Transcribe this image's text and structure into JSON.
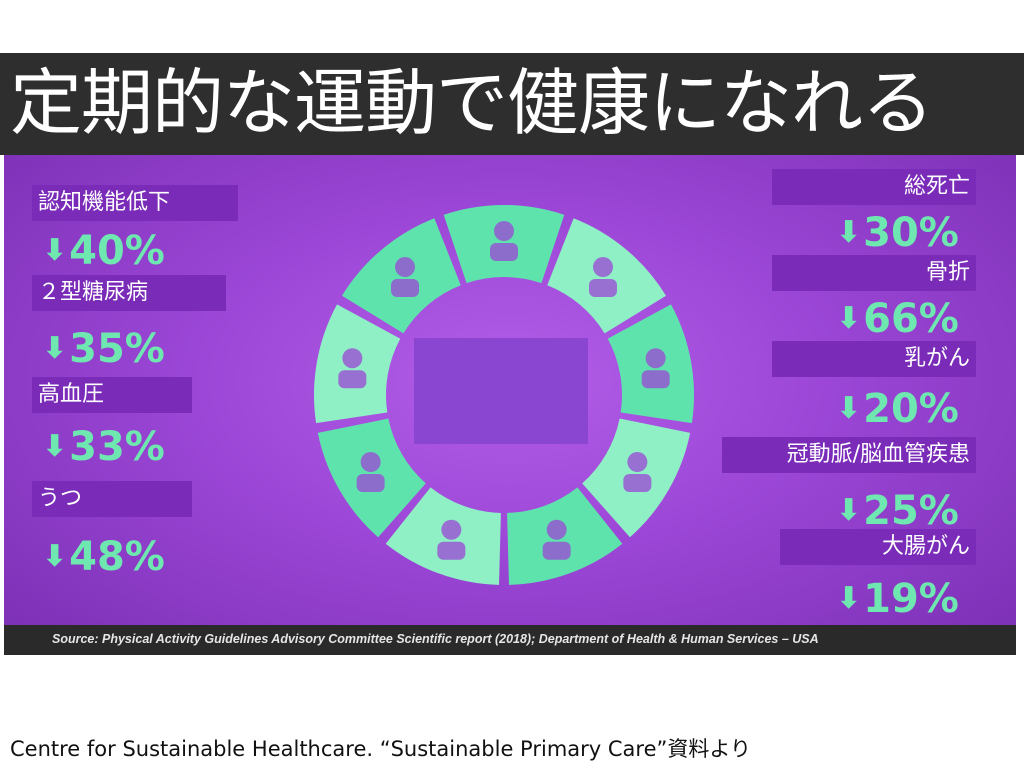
{
  "title": "定期的な運動で健康になれる",
  "left_items": [
    {
      "label": "認知機能低下",
      "value": "40%"
    },
    {
      "label": "２型糖尿病",
      "value": "35%"
    },
    {
      "label": "高血圧",
      "value": "33%"
    },
    {
      "label": "うつ",
      "value": "48%"
    }
  ],
  "right_items": [
    {
      "label": "総死亡",
      "value": "30%"
    },
    {
      "label": "骨折",
      "value": "66%"
    },
    {
      "label": "乳がん",
      "value": "20%"
    },
    {
      "label": "冠動脈/脳血管疾患",
      "value": "25%"
    },
    {
      "label": "大腸がん",
      "value": "19%"
    }
  ],
  "arrow_glyph": "⬇",
  "source": "Source: Physical Activity Guidelines Advisory Committee Scientific report (2018); Department of Health & Human Services – USA",
  "footer": "Centre for Sustainable Healthcare. “Sustainable Primary Care”資料より",
  "colors": {
    "title_bg": "#2e2e2e",
    "panel": "#9b46d6",
    "label_bg": "#7a2bb8",
    "accent": "#6ee8b0"
  },
  "wheel_segment_icons": [
    "brain-icon",
    "family-icon",
    "falling-person-icon",
    "woman-icon",
    "doctor-patient-icon",
    "intestine-icon",
    "person-silhouette-icon",
    "heart-icon",
    "hand-icon"
  ]
}
